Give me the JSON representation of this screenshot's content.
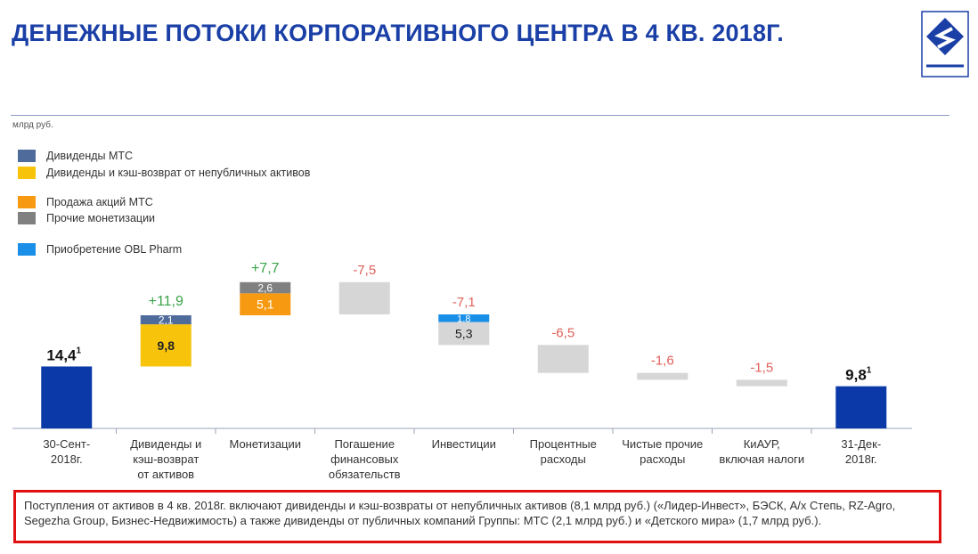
{
  "title": "ДЕНЕЖНЫЕ ПОТОКИ КОРПОРАТИВНОГО ЦЕНТРА В 4 КВ. 2018Г.",
  "unit": "млрд руб.",
  "colors": {
    "title": "#1a3fa6",
    "total": "#0b3aa8",
    "mts_dividends": "#4e6b9c",
    "private_dividends": "#f7c40b",
    "mts_sale": "#f79a12",
    "other_monetization": "#808080",
    "obl_pharm": "#1a8fe8",
    "outflow": "#d6d6d6",
    "positive_label": "#3aa34a",
    "negative_label": "#e0605a",
    "note_border": "#e01010"
  },
  "legend": [
    {
      "label": "Дивиденды МТС",
      "color": "#4e6b9c"
    },
    {
      "label": "Дивиденды и кэш-возврат от непубличных активов",
      "color": "#f7c40b"
    },
    {
      "label": "Продажа акций МТС",
      "color": "#f79a12"
    },
    {
      "label": "Прочие монетизации",
      "color": "#808080"
    },
    {
      "label": "Приобретение OBL Pharm",
      "color": "#1a8fe8"
    }
  ],
  "chart_data": {
    "type": "waterfall",
    "unit": "млрд руб.",
    "categories": [
      "30-Сент-2018г.",
      "Дивиденды и кэш-возврат от активов",
      "Монетизации",
      "Погашение финансовых обязательств",
      "Инвестиции",
      "Процентные расходы",
      "Чистые прочие расходы",
      "КиАУР, включая налоги",
      "31-Дек-2018г."
    ],
    "category_lines": [
      [
        "30-Сент-",
        "2018г."
      ],
      [
        "Дивиденды и",
        "кэш-возврат",
        "от активов"
      ],
      [
        "Монетизации"
      ],
      [
        "Погашение",
        "финансовых",
        "обязательств"
      ],
      [
        "Инвестиции"
      ],
      [
        "Процентные",
        "расходы"
      ],
      [
        "Чистые прочие",
        "расходы"
      ],
      [
        "КиАУР,",
        "включая налоги"
      ],
      [
        "31-Дек-",
        "2018г."
      ]
    ],
    "steps": [
      {
        "kind": "total",
        "value": 14.4,
        "label": "14,4",
        "footnote": "1",
        "segments": [
          {
            "value": 14.4,
            "color": "#0b3aa8"
          }
        ]
      },
      {
        "kind": "change",
        "value": 11.9,
        "label": "+11,9",
        "segments": [
          {
            "value": 9.8,
            "label": "9,8",
            "color": "#f7c40b",
            "text_color": "#222",
            "bold": true
          },
          {
            "value": 2.1,
            "label": "2,1",
            "color": "#4e6b9c",
            "text_color": "#fff"
          }
        ]
      },
      {
        "kind": "change",
        "value": 7.7,
        "label": "+7,7",
        "segments": [
          {
            "value": 5.1,
            "label": "5,1",
            "color": "#f79a12",
            "text_color": "#fff"
          },
          {
            "value": 2.6,
            "label": "2,6",
            "color": "#808080",
            "text_color": "#fff"
          }
        ]
      },
      {
        "kind": "change",
        "value": -7.5,
        "label": "-7,5",
        "segments": [
          {
            "value": 7.5,
            "color": "#d6d6d6"
          }
        ]
      },
      {
        "kind": "change",
        "value": -7.1,
        "label": "-7,1",
        "segments": [
          {
            "value": 1.8,
            "label": "1,8",
            "color": "#1a8fe8",
            "text_color": "#fff"
          },
          {
            "value": 5.3,
            "label": "5,3",
            "color": "#d6d6d6",
            "text_color": "#222"
          }
        ]
      },
      {
        "kind": "change",
        "value": -6.5,
        "label": "-6,5",
        "segments": [
          {
            "value": 6.5,
            "color": "#d6d6d6"
          }
        ]
      },
      {
        "kind": "change",
        "value": -1.6,
        "label": "-1,6",
        "segments": [
          {
            "value": 1.6,
            "color": "#d6d6d6"
          }
        ]
      },
      {
        "kind": "change",
        "value": -1.5,
        "label": "-1,5",
        "segments": [
          {
            "value": 1.5,
            "color": "#d6d6d6"
          }
        ]
      },
      {
        "kind": "total",
        "value": 9.8,
        "label": "9,8",
        "footnote": "1",
        "segments": [
          {
            "value": 9.8,
            "color": "#0b3aa8"
          }
        ]
      }
    ]
  },
  "note": "Поступления от активов в 4 кв. 2018г. включают дивиденды и кэш-возвраты от непубличных активов (8,1 млрд руб.) («Лидер-Инвест», БЭСК, А/х Степь, RZ-Agro, Segezha Group, Бизнес-Недвижимость) а также дивиденды от публичных компаний Группы: МТС (2,1 млрд руб.) и «Детского мира» (1,7 млрд руб.)."
}
